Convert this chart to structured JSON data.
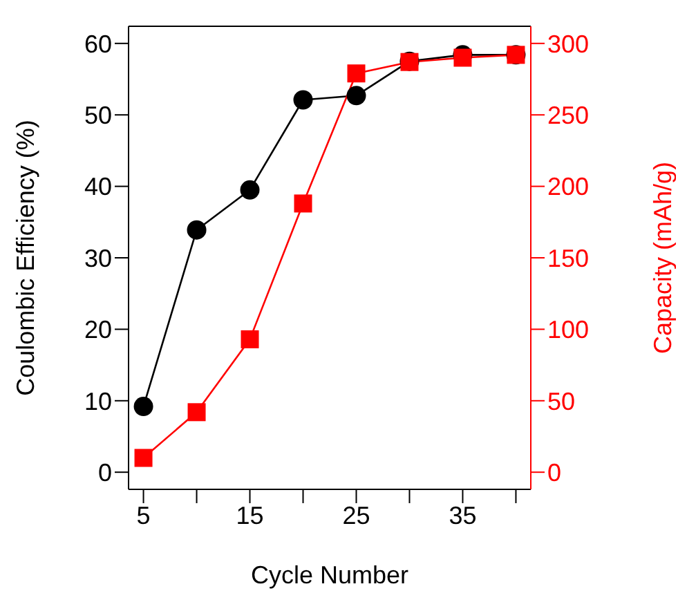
{
  "chart_data": {
    "type": "line",
    "xlabel": "Cycle Number",
    "ylabel": "Coulombic Efficiency (%)",
    "y2label": "Capacity (mAh/g)",
    "x": [
      5,
      10,
      15,
      20,
      25,
      30,
      35,
      40
    ],
    "xlim": [
      3.6,
      41.4
    ],
    "xticks": [
      5,
      {
        "value": 10,
        "label": null
      },
      15,
      {
        "value": 20,
        "label": null
      },
      25,
      {
        "value": 30,
        "label": null
      },
      35,
      {
        "value": 40,
        "label": null
      }
    ],
    "ylim": [
      -2.4,
      62.4
    ],
    "yticks": [
      0,
      10,
      20,
      30,
      40,
      50,
      60
    ],
    "y2lim": [
      -12,
      312
    ],
    "y2ticks": [
      0,
      50,
      100,
      150,
      200,
      250,
      300
    ],
    "grid": false,
    "legend": false,
    "line_style": "solid",
    "series": [
      {
        "color": "#000000",
        "marker": "circle",
        "values": [
          9.2,
          33.9,
          39.5,
          52.1,
          52.7,
          57.5,
          58.4,
          58.4
        ]
      },
      {
        "color": "#ff0000",
        "marker": "square",
        "axis": "y2",
        "values": [
          10,
          42,
          93,
          188,
          279,
          287,
          290,
          292
        ]
      }
    ]
  }
}
